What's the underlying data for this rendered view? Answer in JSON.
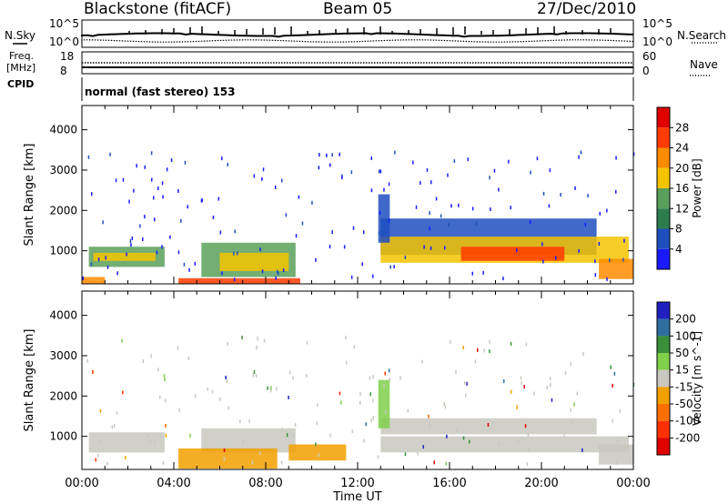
{
  "header": {
    "station": "Blackstone (fitACF)",
    "beam": "Beam 05",
    "date": "27/Dec/2010"
  },
  "strip_labels": {
    "nsky": "N.Sky",
    "nsky_hi": "10^5",
    "nsky_lo": "10^0",
    "freq": "Freq.",
    "mhz": "[MHz]",
    "freq_hi": "18",
    "freq_lo": "8",
    "cpid": "CPID",
    "nsearch": "N.Search",
    "nsearch_hi": "10^5",
    "nsearch_lo": "10^0",
    "nave": "Nave",
    "nave_hi": "60",
    "nave_lo": "0",
    "cpid_text": "normal (fast stereo) 153"
  },
  "chart_data": [
    {
      "type": "heatmap",
      "name": "power",
      "ylabel": "Slant Range [km]",
      "xlabel": "Time UT",
      "x_ticks": [
        "00:00",
        "04:00",
        "08:00",
        "12:00",
        "16:00",
        "20:00",
        "00:00"
      ],
      "y_ticks": [
        1000,
        2000,
        3000,
        4000
      ],
      "ylim": [
        180,
        4600
      ],
      "xlim_hours": [
        0,
        24
      ],
      "colorbar": {
        "label": "Power [dB]",
        "ticks": [
          "4",
          "8",
          "12",
          "16",
          "20",
          "24",
          "28"
        ],
        "colors": [
          "#1a1aff",
          "#1f4fbf",
          "#2e7d4f",
          "#5aa05a",
          "#f5c400",
          "#ff8c00",
          "#ff3b00",
          "#e00000"
        ]
      },
      "regions": [
        {
          "t0": 0.3,
          "t1": 3.6,
          "r0": 600,
          "r1": 1100,
          "level": 3
        },
        {
          "t0": 0.5,
          "t1": 3.2,
          "r0": 750,
          "r1": 950,
          "level": 4
        },
        {
          "t0": 5.2,
          "t1": 9.3,
          "r0": 350,
          "r1": 1200,
          "level": 3
        },
        {
          "t0": 6.0,
          "t1": 9.0,
          "r0": 500,
          "r1": 950,
          "level": 4
        },
        {
          "t0": 4.2,
          "t1": 9.5,
          "r0": 180,
          "r1": 320,
          "level": 6
        },
        {
          "t0": 0.0,
          "t1": 1.0,
          "r0": 180,
          "r1": 350,
          "level": 5
        },
        {
          "t0": 13.0,
          "t1": 22.4,
          "r0": 900,
          "r1": 1800,
          "level": 1
        },
        {
          "t0": 13.0,
          "t1": 23.8,
          "r0": 700,
          "r1": 1350,
          "level": 4
        },
        {
          "t0": 16.5,
          "t1": 21.0,
          "r0": 750,
          "r1": 1100,
          "level": 6
        },
        {
          "t0": 22.5,
          "t1": 24.0,
          "r0": 300,
          "r1": 800,
          "level": 5
        },
        {
          "t0": 12.9,
          "t1": 13.4,
          "r0": 1200,
          "r1": 2400,
          "level": 1
        }
      ]
    },
    {
      "type": "heatmap",
      "name": "velocity",
      "ylabel": "Slant Range [km]",
      "xlabel": "Time UT",
      "x_ticks": [
        "00:00",
        "04:00",
        "08:00",
        "12:00",
        "16:00",
        "20:00",
        "00:00"
      ],
      "y_ticks": [
        1000,
        2000,
        3000,
        4000
      ],
      "ylim": [
        180,
        4600
      ],
      "xlim_hours": [
        0,
        24
      ],
      "colorbar": {
        "label": "Velocity [m s^-1]",
        "ticks": [
          "200",
          "100",
          "50",
          "15",
          "-15",
          "-50",
          "-100",
          "-200"
        ],
        "colors": [
          "#2020c0",
          "#2f6f9f",
          "#3a8f3a",
          "#7fd04a",
          "#c8c8c0",
          "#f2a000",
          "#ff7000",
          "#ff3000",
          "#e00000"
        ]
      },
      "regions": [
        {
          "t0": 0.3,
          "t1": 3.6,
          "r0": 600,
          "r1": 1100,
          "level": 4
        },
        {
          "t0": 5.2,
          "t1": 9.3,
          "r0": 600,
          "r1": 1200,
          "level": 4
        },
        {
          "t0": 4.2,
          "t1": 8.5,
          "r0": 200,
          "r1": 700,
          "level": 5
        },
        {
          "t0": 9.0,
          "t1": 11.5,
          "r0": 400,
          "r1": 800,
          "level": 5
        },
        {
          "t0": 13.0,
          "t1": 22.4,
          "r0": 1050,
          "r1": 1450,
          "level": 4
        },
        {
          "t0": 13.0,
          "t1": 23.8,
          "r0": 600,
          "r1": 1000,
          "level": 4
        },
        {
          "t0": 22.5,
          "t1": 24.0,
          "r0": 300,
          "r1": 800,
          "level": 4
        },
        {
          "t0": 12.9,
          "t1": 13.4,
          "r0": 1200,
          "r1": 2400,
          "level": 3
        }
      ]
    }
  ]
}
